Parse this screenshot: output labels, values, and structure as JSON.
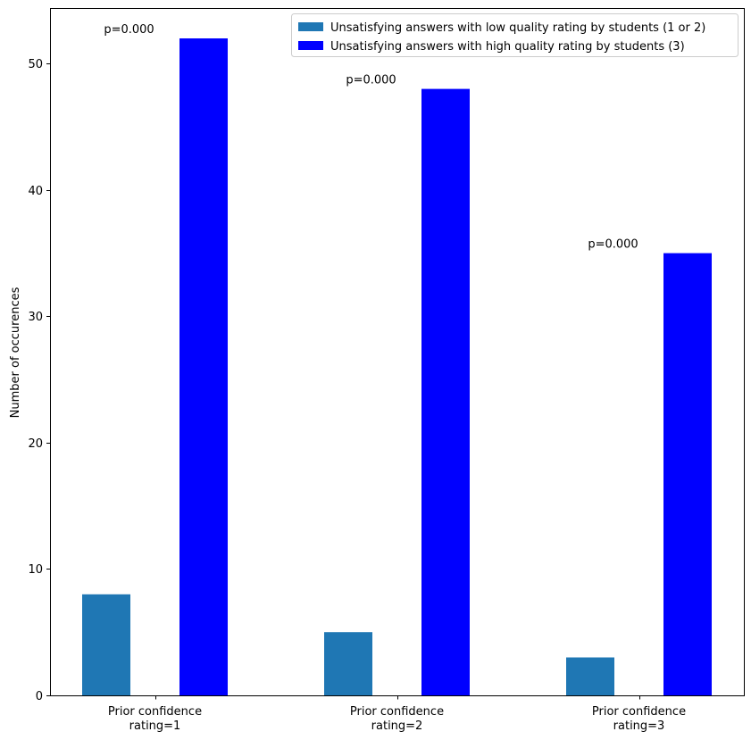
{
  "chart_data": {
    "type": "bar",
    "title": "",
    "xlabel": "",
    "ylabel": "Number of occurences",
    "ylim": [
      0,
      54.4
    ],
    "yticks": [
      0,
      10,
      20,
      30,
      40,
      50
    ],
    "categories": [
      [
        "Prior confidence",
        "rating=1"
      ],
      [
        "Prior confidence",
        "rating=2"
      ],
      [
        "Prior confidence",
        "rating=3"
      ]
    ],
    "series": [
      {
        "name": "Unsatisfying answers with low quality rating by students (1 or 2)",
        "color": "#1f77b4",
        "values": [
          8,
          5,
          3
        ]
      },
      {
        "name": "Unsatisfying answers with high quality rating by students (3)",
        "color": "#0000ff",
        "values": [
          52,
          48,
          35
        ]
      }
    ],
    "annotations": [
      "p=0.000",
      "p=0.000",
      "p=0.000"
    ],
    "legend": "top-right",
    "grid": false
  }
}
